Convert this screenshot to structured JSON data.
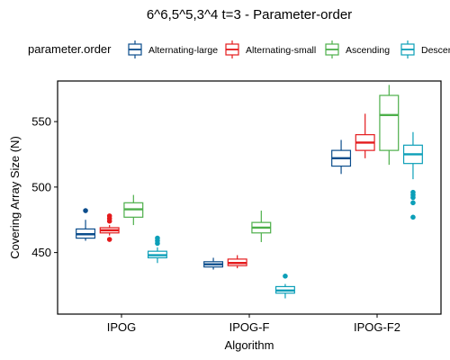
{
  "chart_data": {
    "type": "box",
    "title": "6^6,5^5,3^4 t=3 - Parameter-order",
    "xlabel": "Algorithm",
    "ylabel": "Covering Array Size (N)",
    "ylim": [
      403,
      581
    ],
    "yticks": [
      450,
      500,
      550
    ],
    "grid": false,
    "legend": {
      "title": "parameter.order",
      "position": "top"
    },
    "categories": [
      "IPOG",
      "IPOG-F",
      "IPOG-F2"
    ],
    "series": [
      {
        "name": "Alternating-large",
        "color": "#0b4d8c",
        "boxes": [
          {
            "whisker_low": 459,
            "q1": 461,
            "median": 464,
            "q3": 468,
            "whisker_high": 475,
            "outliers": [
              482
            ]
          },
          {
            "whisker_low": 437,
            "q1": 439,
            "median": 441,
            "q3": 443,
            "whisker_high": 446,
            "outliers": []
          },
          {
            "whisker_low": 510,
            "q1": 516,
            "median": 522,
            "q3": 528,
            "whisker_high": 536,
            "outliers": []
          }
        ]
      },
      {
        "name": "Alternating-small",
        "color": "#e41a1c",
        "boxes": [
          {
            "whisker_low": 463,
            "q1": 465,
            "median": 467,
            "q3": 469,
            "whisker_high": 471,
            "outliers": [
              460,
              474,
              476,
              478
            ]
          },
          {
            "whisker_low": 438,
            "q1": 440,
            "median": 442,
            "q3": 445,
            "whisker_high": 448,
            "outliers": []
          },
          {
            "whisker_low": 522,
            "q1": 528,
            "median": 534,
            "q3": 540,
            "whisker_high": 556,
            "outliers": []
          }
        ]
      },
      {
        "name": "Ascending",
        "color": "#4daf4a",
        "boxes": [
          {
            "whisker_low": 471,
            "q1": 477,
            "median": 483,
            "q3": 488,
            "whisker_high": 494,
            "outliers": []
          },
          {
            "whisker_low": 458,
            "q1": 465,
            "median": 469,
            "q3": 473,
            "whisker_high": 482,
            "outliers": []
          },
          {
            "whisker_low": 517,
            "q1": 528,
            "median": 555,
            "q3": 570,
            "whisker_high": 578,
            "outliers": []
          }
        ]
      },
      {
        "name": "Descending",
        "color": "#0c9fb8",
        "boxes": [
          {
            "whisker_low": 442,
            "q1": 446,
            "median": 448,
            "q3": 451,
            "whisker_high": 454,
            "outliers": [
              457,
              459,
              461
            ]
          },
          {
            "whisker_low": 415,
            "q1": 419,
            "median": 421,
            "q3": 424,
            "whisker_high": 426,
            "outliers": [
              432
            ]
          },
          {
            "whisker_low": 506,
            "q1": 518,
            "median": 525,
            "q3": 532,
            "whisker_high": 542,
            "outliers": [
              477,
              488,
              492,
              494,
              496
            ]
          }
        ]
      }
    ]
  }
}
